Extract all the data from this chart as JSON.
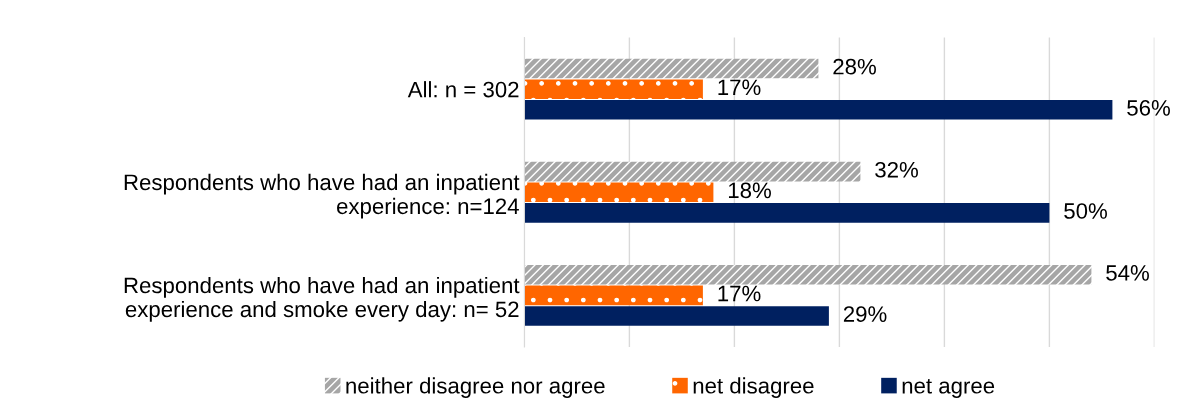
{
  "chart_data": {
    "type": "bar",
    "orientation": "horizontal",
    "categories": [
      "All: n = 302",
      "Respondents who have had an inpatient\nexperience: n=124",
      "Respondents who have had an inpatient\nexperience and smoke every day: n= 52"
    ],
    "series": [
      {
        "name": "neither disagree nor agree",
        "color": "#a6a6a6",
        "values": [
          28,
          32,
          54
        ],
        "value_labels": [
          "28%",
          "32%",
          "54%"
        ]
      },
      {
        "name": "net disagree",
        "color": "#ff6600",
        "values": [
          17,
          18,
          17
        ],
        "value_labels": [
          "17%",
          "18%",
          "17%"
        ]
      },
      {
        "name": "net agree",
        "color": "#002060",
        "values": [
          56,
          50,
          29
        ],
        "value_labels": [
          "56%",
          "50%",
          "29%"
        ]
      }
    ],
    "xlim": [
      0,
      60
    ],
    "xticks": [
      {
        "value": 0,
        "label": null
      },
      {
        "value": 10,
        "label": null
      },
      {
        "value": 20,
        "label": null
      },
      {
        "value": 30,
        "label": null
      },
      {
        "value": 40,
        "label": null
      },
      {
        "value": 50,
        "label": null
      },
      {
        "value": 60,
        "label": null
      }
    ],
    "grid": "x",
    "legend": "bottom",
    "tick_labels": "y"
  }
}
